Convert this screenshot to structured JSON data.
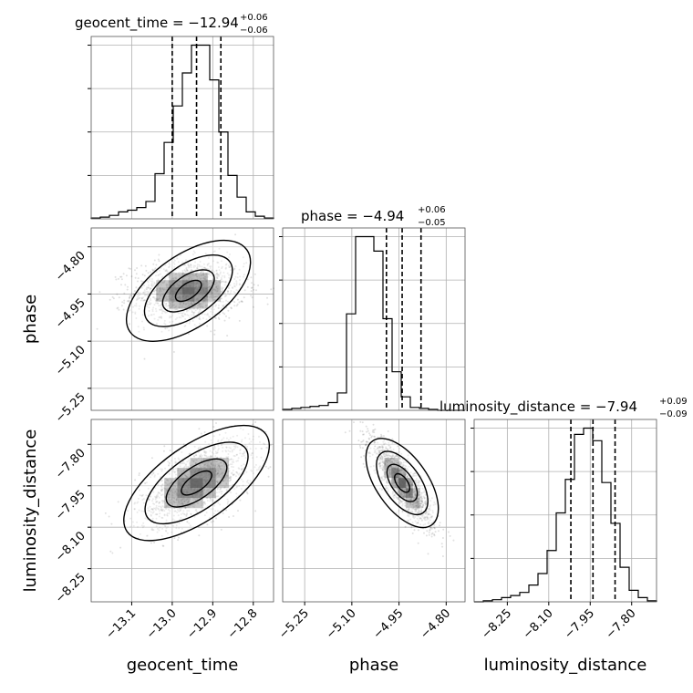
{
  "chart_data": {
    "type": "corner",
    "parameters": [
      {
        "name": "geocent_time",
        "label": "geocent_time",
        "median": -12.94,
        "plus": "0.06",
        "minus": "0.06",
        "title_main": "geocent_time = −12.94",
        "title_plus": "+0.06",
        "title_minus": "−0.06",
        "range": [
          -13.2,
          -12.75
        ],
        "ticks": [
          -13.1,
          -13.0,
          -12.9,
          -12.8
        ],
        "tick_labels": [
          "−13.1",
          "−13.0",
          "−12.9",
          "−12.8"
        ],
        "quantiles": [
          -13.0,
          -12.94,
          -12.88
        ]
      },
      {
        "name": "phase",
        "label": "phase",
        "median": -4.94,
        "plus": "0.06",
        "minus": "0.05",
        "title_main": "phase = −4.94",
        "title_plus": "+0.06",
        "title_minus": "−0.05",
        "range": [
          -5.32,
          -4.74
        ],
        "ticks": [
          -5.25,
          -5.1,
          -4.95,
          -4.8
        ],
        "tick_labels": [
          "−5.25",
          "−5.10",
          "−4.95",
          "−4.80"
        ],
        "quantiles": [
          -4.99,
          -4.94,
          -4.88
        ]
      },
      {
        "name": "luminosity_distance",
        "label": "luminosity_distance",
        "median": -7.94,
        "plus": "0.09",
        "minus": "0.09",
        "title_main": "luminosity_distance = −7.94",
        "title_plus": "+0.09",
        "title_minus": "−0.09",
        "range": [
          -8.37,
          -7.71
        ],
        "ticks": [
          -8.25,
          -8.1,
          -7.95,
          -7.8
        ],
        "tick_labels": [
          "−8.25",
          "−8.10",
          "−7.95",
          "−7.80"
        ],
        "quantiles": [
          -8.02,
          -7.94,
          -7.86
        ]
      }
    ],
    "histograms": [
      {
        "param": "geocent_time",
        "values": [
          1,
          2,
          4,
          8,
          10,
          13,
          20,
          52,
          88,
          130,
          168,
          200,
          200,
          160,
          100,
          50,
          25,
          8,
          3,
          1
        ]
      },
      {
        "param": "phase",
        "values": [
          1,
          2,
          3,
          4,
          5,
          8,
          18,
          100,
          180,
          180,
          165,
          95,
          40,
          14,
          3,
          2,
          1,
          0,
          0,
          0
        ]
      },
      {
        "param": "luminosity_distance",
        "values": [
          0,
          1,
          2,
          4,
          6,
          9,
          16,
          27,
          49,
          85,
          117,
          160,
          166,
          154,
          114,
          75,
          33,
          11,
          4,
          1
        ]
      }
    ],
    "pairs": [
      {
        "x": "geocent_time",
        "y": "phase",
        "center": [
          -12.96,
          -4.94
        ],
        "sd": [
          0.07,
          0.05
        ],
        "rho": 0.1
      },
      {
        "x": "geocent_time",
        "y": "luminosity_distance",
        "center": [
          -12.94,
          -7.94
        ],
        "sd": [
          0.07,
          0.08
        ],
        "rho": 0.55
      },
      {
        "x": "phase",
        "y": "luminosity_distance",
        "center": [
          -4.94,
          -7.94
        ],
        "sd": [
          0.05,
          0.08
        ],
        "rho": -0.85
      }
    ],
    "grid": true
  }
}
